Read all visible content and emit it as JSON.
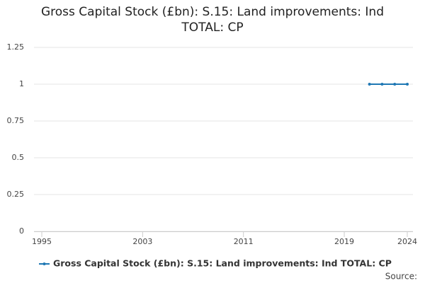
{
  "chart_data": {
    "type": "line",
    "title": "Gross Capital Stock (£bn): S.15: Land improvements: Ind TOTAL: CP",
    "x": [
      2021,
      2022,
      2023,
      2024
    ],
    "series": [
      {
        "name": "Gross Capital Stock (£bn): S.15: Land improvements: Ind TOTAL: CP",
        "color": "#1f78b4",
        "values": [
          1,
          1,
          1,
          1
        ]
      }
    ],
    "xlim": [
      1995,
      2024
    ],
    "xticks": [
      1995,
      2003,
      2011,
      2019,
      2024
    ],
    "ylim": [
      0,
      1.25
    ],
    "yticks": [
      0,
      0.25,
      0.5,
      0.75,
      1,
      1.25
    ],
    "grid": true,
    "legend": "bottom",
    "source": "Source:"
  }
}
